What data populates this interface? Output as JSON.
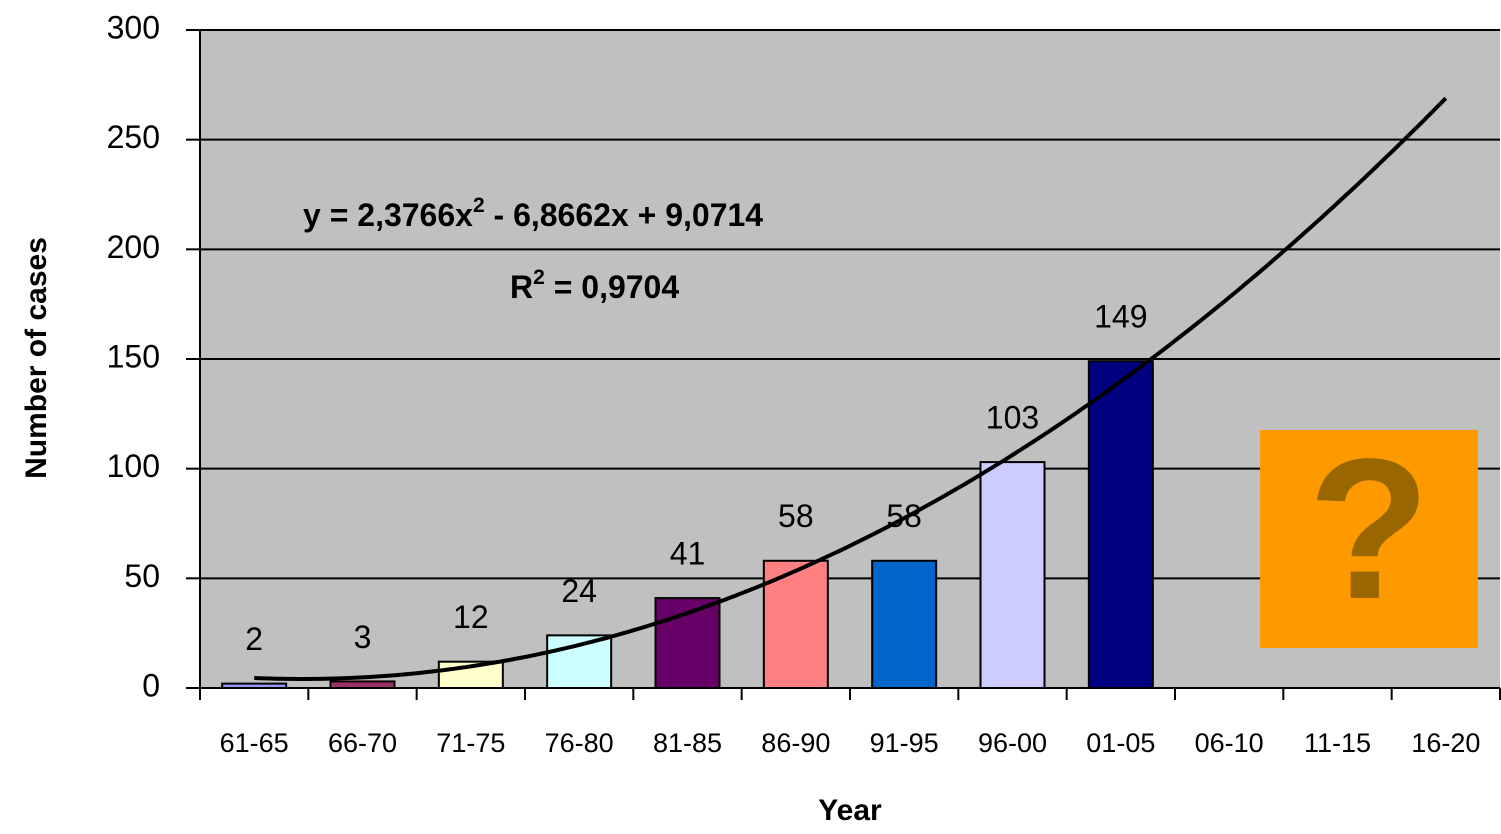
{
  "chart_data": {
    "type": "bar",
    "categories": [
      "61-65",
      "66-70",
      "71-75",
      "76-80",
      "81-85",
      "86-90",
      "91-95",
      "96-00",
      "01-05",
      "06-10",
      "11-15",
      "16-20"
    ],
    "values": [
      2,
      3,
      12,
      24,
      41,
      58,
      58,
      103,
      149,
      null,
      null,
      null
    ],
    "colors": [
      "#9999ff",
      "#993366",
      "#ffffcc",
      "#ccffff",
      "#660066",
      "#ff8080",
      "#0066cc",
      "#ccccff",
      "#000080",
      null,
      null,
      null
    ],
    "ylim": [
      0,
      300
    ],
    "yticks": [
      0,
      50,
      100,
      150,
      200,
      250,
      300
    ],
    "grid": true,
    "y_label": "Number of cases",
    "x_label": "Year",
    "trendline": {
      "type": "polynomial",
      "coefficients": [
        2.3766,
        -6.8662,
        9.0714
      ]
    },
    "equation": {
      "lhs": "y = 2,3766x",
      "exp": "2",
      "rhs": " - 6,8662x + 9,0714"
    },
    "r_squared": {
      "lhs": "R",
      "exp": "2",
      "rhs": " = 0,9704"
    },
    "annotation": "?"
  }
}
